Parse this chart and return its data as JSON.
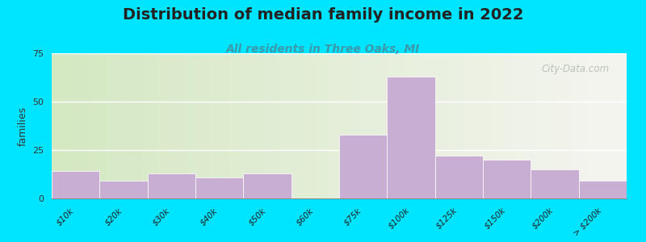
{
  "title": "Distribution of median family income in 2022",
  "subtitle": "All residents in Three Oaks, MI",
  "ylabel": "families",
  "categories": [
    "$10k",
    "$20k",
    "$30k",
    "$40k",
    "$50k",
    "$60k",
    "$75k",
    "$100k",
    "$125k",
    "$150k",
    "$200k",
    "> $200k"
  ],
  "values": [
    14,
    9,
    13,
    11,
    13,
    0,
    33,
    63,
    22,
    20,
    15,
    9
  ],
  "bar_color": "#c9aed4",
  "background_color": "#00e5ff",
  "plot_bg_left": "#d4e8c2",
  "plot_bg_right": "#f5f5f0",
  "ylim": [
    0,
    75
  ],
  "yticks": [
    0,
    25,
    50,
    75
  ],
  "title_fontsize": 14,
  "subtitle_fontsize": 10,
  "title_color": "#222222",
  "subtitle_color": "#3a9aaa",
  "watermark_text": "City-Data.com",
  "watermark_color": "#b0b8b0"
}
